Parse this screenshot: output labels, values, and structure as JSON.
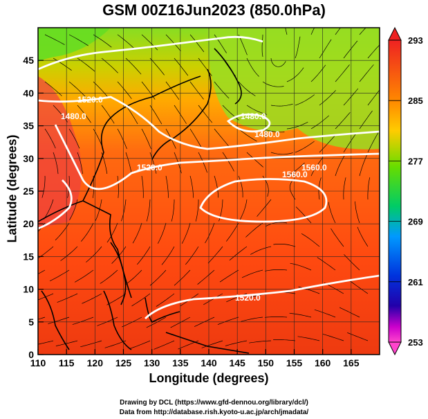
{
  "title": "GSM 00Z16Jun2023 (850.0hPa)",
  "xaxis": {
    "label": "Longitude (degrees)",
    "range": [
      110,
      170
    ],
    "ticks": [
      110,
      115,
      120,
      125,
      130,
      135,
      140,
      145,
      150,
      155,
      160,
      165
    ]
  },
  "yaxis": {
    "label": "Latitude  (degrees)",
    "range": [
      0,
      50
    ],
    "ticks": [
      0,
      5,
      10,
      15,
      20,
      25,
      30,
      35,
      40,
      45
    ]
  },
  "colorbar": {
    "range": [
      253,
      293
    ],
    "labels": [
      293,
      285,
      277,
      269,
      261,
      253
    ],
    "colors": [
      "#ee2222",
      "#ff8800",
      "#ffcc00",
      "#66dd00",
      "#00cc66",
      "#0099ff",
      "#0033dd",
      "#2200aa",
      "#cc00cc",
      "#ff44cc"
    ]
  },
  "contours": [
    {
      "label": "1520.0"
    },
    {
      "label": "1560.0"
    },
    {
      "label": "1480.0"
    },
    {
      "label": "1480.0"
    },
    {
      "label": "1560.0"
    },
    {
      "label": "1520.0"
    },
    {
      "label": "1520.0"
    },
    {
      "label": "1480.0"
    }
  ],
  "credits": {
    "line1": "Drawing by DCL (https://www.gfd-dennou.org/library/dcl/)",
    "line2": "Data from http://database.rish.kyoto-u.ac.jp/arch/jmadata/"
  }
}
